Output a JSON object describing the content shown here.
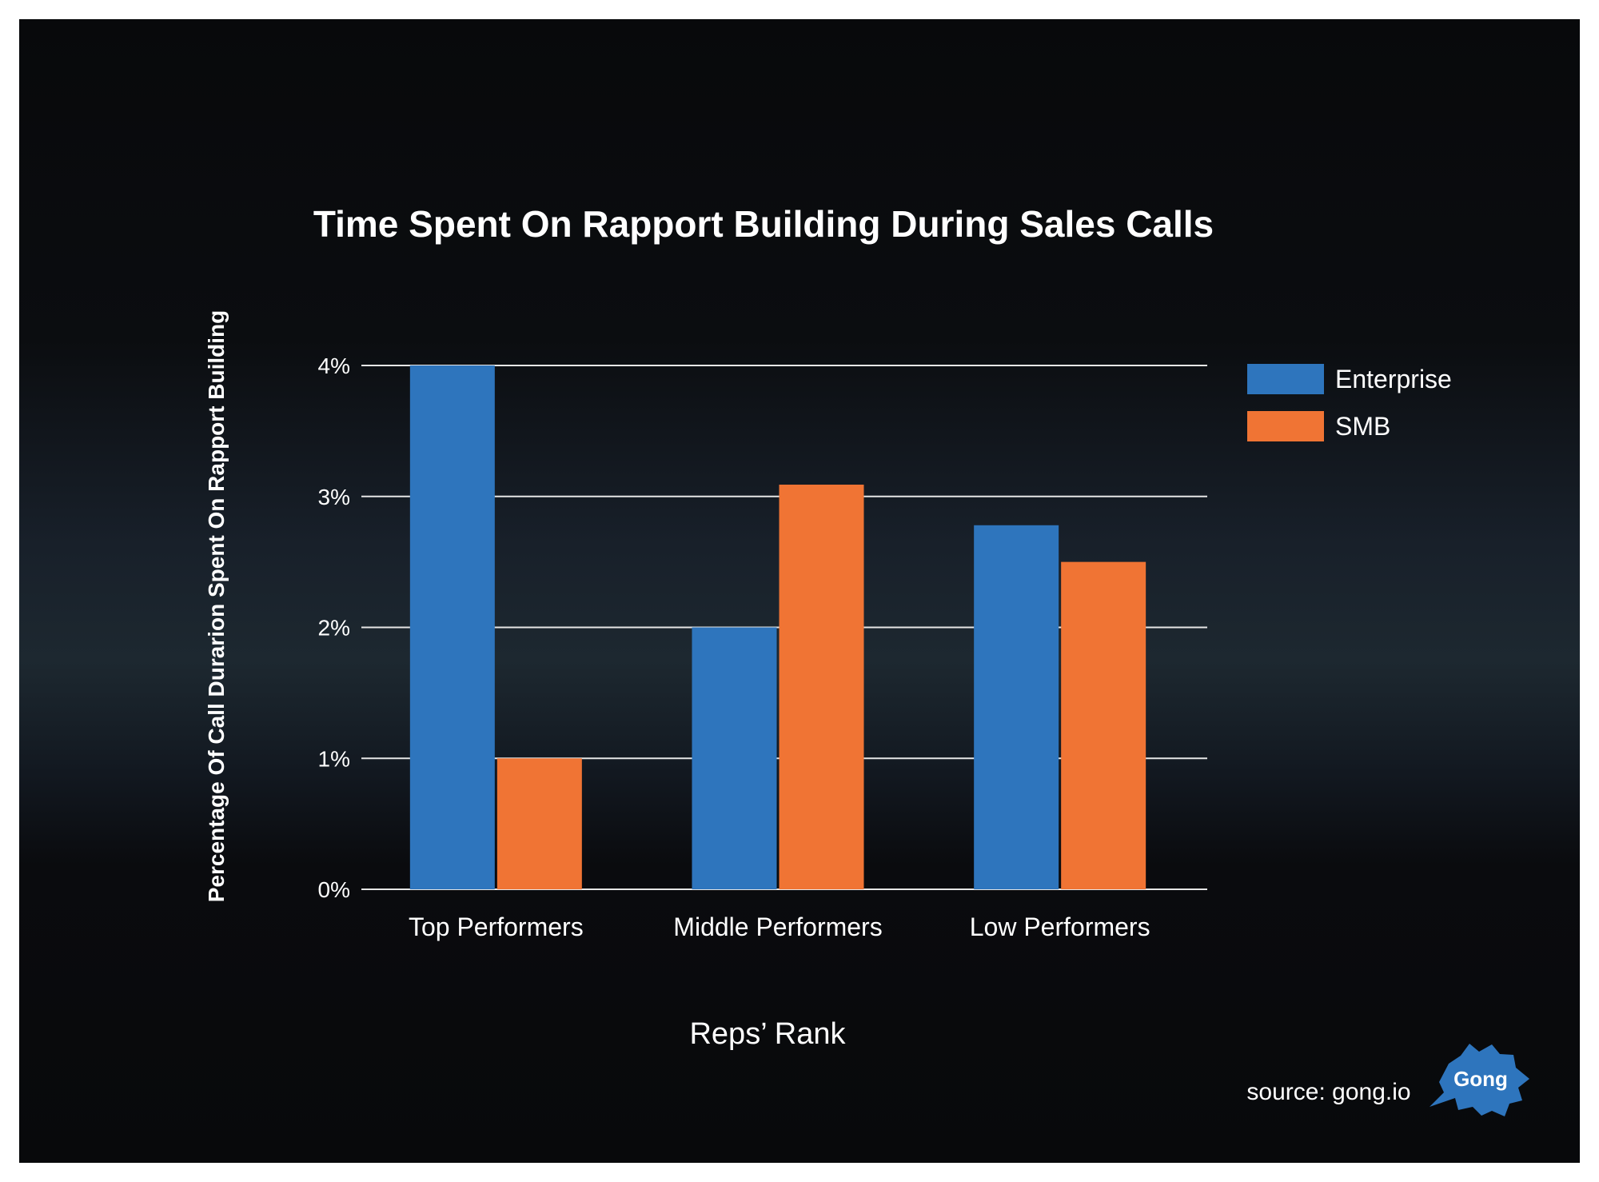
{
  "chart_data": {
    "type": "bar",
    "title": "Time Spent On Rapport Building During Sales Calls",
    "xlabel": "Reps’ Rank",
    "ylabel": "Percentage Of Call Durarion Spent On Rapport Building",
    "categories": [
      "Top Performers",
      "Middle Performers",
      "Low Performers"
    ],
    "series": [
      {
        "name": "Enterprise",
        "color": "#2e75bd",
        "values": [
          4.0,
          2.0,
          2.78
        ]
      },
      {
        "name": "SMB",
        "color": "#f07434",
        "values": [
          1.0,
          3.09,
          2.5
        ]
      }
    ],
    "ylim": [
      0,
      4
    ],
    "yticks": [
      {
        "value": 0,
        "label": "0%"
      },
      {
        "value": 1,
        "label": "1%"
      },
      {
        "value": 2,
        "label": "2%"
      },
      {
        "value": 3,
        "label": "3%"
      },
      {
        "value": 4,
        "label": "4%"
      }
    ],
    "grid": true,
    "legend_position": "right"
  },
  "source": "source: gong.io",
  "logo": {
    "text": "Gong",
    "color": "#2e75bd"
  }
}
